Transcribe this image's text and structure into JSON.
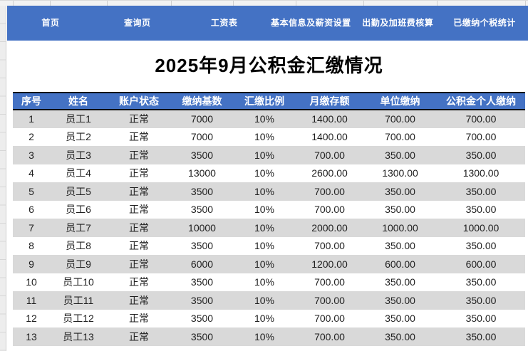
{
  "nav": {
    "bg_color": "#4472C4",
    "text_color": "#FFFFFF",
    "items": [
      {
        "id": "home",
        "label": "首页"
      },
      {
        "id": "query",
        "label": "查询页"
      },
      {
        "id": "salary-sheet",
        "label": "工资表"
      },
      {
        "id": "basic-info",
        "label": "基本信息及薪资设置"
      },
      {
        "id": "attendance",
        "label": "出勤及加班费核算"
      },
      {
        "id": "tax-stats",
        "label": "已缴纳个税统计"
      }
    ]
  },
  "title": "2025年9月公积金汇缴情况",
  "table": {
    "header_bg": "#4472C4",
    "header_text_color": "#FFFFFF",
    "alt_row_bg": "#D9D9D9",
    "columns": [
      "序号",
      "姓名",
      "账户状态",
      "缴纳基数",
      "汇缴比例",
      "月缴存额",
      "单位缴纳",
      "公积金个人缴纳"
    ],
    "rows": [
      [
        "1",
        "员工1",
        "正常",
        "7000",
        "10%",
        "1400.00",
        "700.00",
        "700.00"
      ],
      [
        "2",
        "员工2",
        "正常",
        "7000",
        "10%",
        "1400.00",
        "700.00",
        "700.00"
      ],
      [
        "3",
        "员工3",
        "正常",
        "3500",
        "10%",
        "700.00",
        "350.00",
        "350.00"
      ],
      [
        "4",
        "员工4",
        "正常",
        "13000",
        "10%",
        "2600.00",
        "1300.00",
        "1300.00"
      ],
      [
        "5",
        "员工5",
        "正常",
        "3500",
        "10%",
        "700.00",
        "350.00",
        "350.00"
      ],
      [
        "6",
        "员工6",
        "正常",
        "3500",
        "10%",
        "700.00",
        "350.00",
        "350.00"
      ],
      [
        "7",
        "员工7",
        "正常",
        "10000",
        "10%",
        "2000.00",
        "1000.00",
        "1000.00"
      ],
      [
        "8",
        "员工8",
        "正常",
        "3500",
        "10%",
        "700.00",
        "350.00",
        "350.00"
      ],
      [
        "9",
        "员工9",
        "正常",
        "6000",
        "10%",
        "1200.00",
        "600.00",
        "600.00"
      ],
      [
        "10",
        "员工10",
        "正常",
        "3500",
        "10%",
        "700.00",
        "350.00",
        "350.00"
      ],
      [
        "11",
        "员工11",
        "正常",
        "3500",
        "10%",
        "700.00",
        "350.00",
        "350.00"
      ],
      [
        "12",
        "员工12",
        "正常",
        "3500",
        "10%",
        "700.00",
        "350.00",
        "350.00"
      ],
      [
        "13",
        "员工13",
        "正常",
        "3500",
        "10%",
        "700.00",
        "350.00",
        "350.00"
      ]
    ]
  }
}
